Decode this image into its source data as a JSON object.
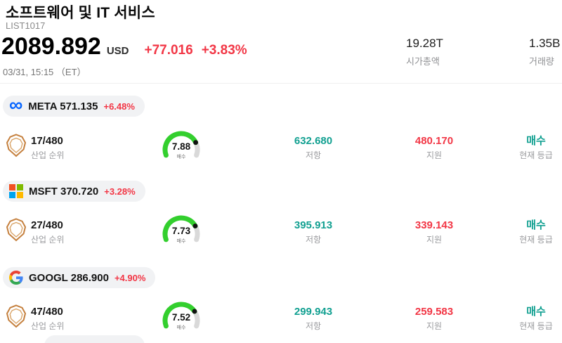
{
  "header": {
    "title": "소프트웨어 및 IT 서비스",
    "list_id": "LIST1017",
    "price": "2089.892",
    "currency": "USD",
    "change": "+77.016",
    "change_pct": "+3.83%",
    "datetime": "03/31, 15:15 （ET）",
    "market_cap": "19.28T",
    "market_cap_label": "시가총액",
    "volume": "1.35B",
    "volume_label": "거래량"
  },
  "labels": {
    "industry_rank": "산업 순위",
    "resistance": "저항",
    "support": "지원",
    "current_rating": "현재 등급"
  },
  "colors": {
    "up_red": "#f23645",
    "teal": "#12a091",
    "gauge_green": "#33cf2e",
    "gauge_rest": "#d9d9d9",
    "dot": "#111111",
    "meta_blue": "#0866ff",
    "ms_red": "#f25022",
    "ms_green": "#7fba00",
    "ms_blue": "#00a4ef",
    "ms_yellow": "#ffb900",
    "shield_orange": "#c5803e"
  },
  "gauge": {
    "max": 10
  },
  "stocks": [
    {
      "ticker": "META",
      "price": "571.135",
      "change_pct": "+6.48%",
      "rank": "17/480",
      "score": "7.88",
      "score_value": 7.88,
      "gauge_label": "매수",
      "resistance": "632.680",
      "support": "480.170",
      "rating": "매수"
    },
    {
      "ticker": "MSFT",
      "price": "370.720",
      "change_pct": "+3.28%",
      "rank": "27/480",
      "score": "7.73",
      "score_value": 7.73,
      "gauge_label": "매수",
      "resistance": "395.913",
      "support": "339.143",
      "rating": "매수"
    },
    {
      "ticker": "GOOGL",
      "price": "286.900",
      "change_pct": "+4.90%",
      "rank": "47/480",
      "score": "7.52",
      "score_value": 7.52,
      "gauge_label": "매수",
      "resistance": "299.943",
      "support": "259.583",
      "rating": "매수"
    }
  ]
}
